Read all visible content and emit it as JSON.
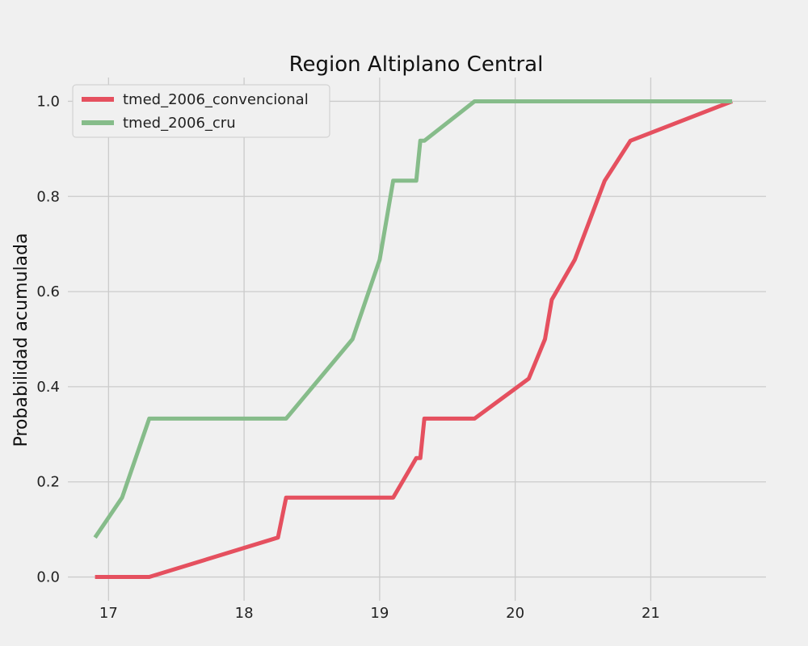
{
  "colors": {
    "background": "#f0f0f0",
    "grid": "#cbcbcb",
    "legend_bg": "#f0f0f0",
    "legend_border": "#cccccc"
  },
  "chart_data": {
    "type": "line",
    "title": "Region Altiplano Central",
    "xlabel": "",
    "ylabel": "Probabilidad acumulada",
    "xlim": [
      16.7,
      21.85
    ],
    "ylim": [
      -0.05,
      1.05
    ],
    "xticks": [
      17,
      18,
      19,
      20,
      21
    ],
    "yticks": [
      0.0,
      0.2,
      0.4,
      0.6,
      0.8,
      1.0
    ],
    "xtick_labels": [
      "17",
      "18",
      "19",
      "20",
      "21"
    ],
    "ytick_labels": [
      "0.0",
      "0.2",
      "0.4",
      "0.6",
      "0.8",
      "1.0"
    ],
    "grid": true,
    "legend_position": "top-left",
    "series": [
      {
        "name": "tmed_2006_convencional",
        "color": "#e5505f",
        "points": [
          [
            16.9,
            0.0
          ],
          [
            17.3,
            0.0
          ],
          [
            18.25,
            0.083
          ],
          [
            18.31,
            0.167
          ],
          [
            19.1,
            0.167
          ],
          [
            19.27,
            0.25
          ],
          [
            19.3,
            0.25
          ],
          [
            19.33,
            0.333
          ],
          [
            19.7,
            0.333
          ],
          [
            20.1,
            0.417
          ],
          [
            20.22,
            0.5
          ],
          [
            20.27,
            0.583
          ],
          [
            20.44,
            0.667
          ],
          [
            20.66,
            0.833
          ],
          [
            20.85,
            0.917
          ],
          [
            21.6,
            1.0
          ]
        ]
      },
      {
        "name": "tmed_2006_cru",
        "color": "#86bc8a",
        "points": [
          [
            16.9,
            0.083
          ],
          [
            17.1,
            0.167
          ],
          [
            17.3,
            0.333
          ],
          [
            18.31,
            0.333
          ],
          [
            18.8,
            0.5
          ],
          [
            19.0,
            0.667
          ],
          [
            19.1,
            0.833
          ],
          [
            19.27,
            0.833
          ],
          [
            19.3,
            0.917
          ],
          [
            19.33,
            0.917
          ],
          [
            19.7,
            1.0
          ],
          [
            21.6,
            1.0
          ]
        ]
      }
    ]
  }
}
